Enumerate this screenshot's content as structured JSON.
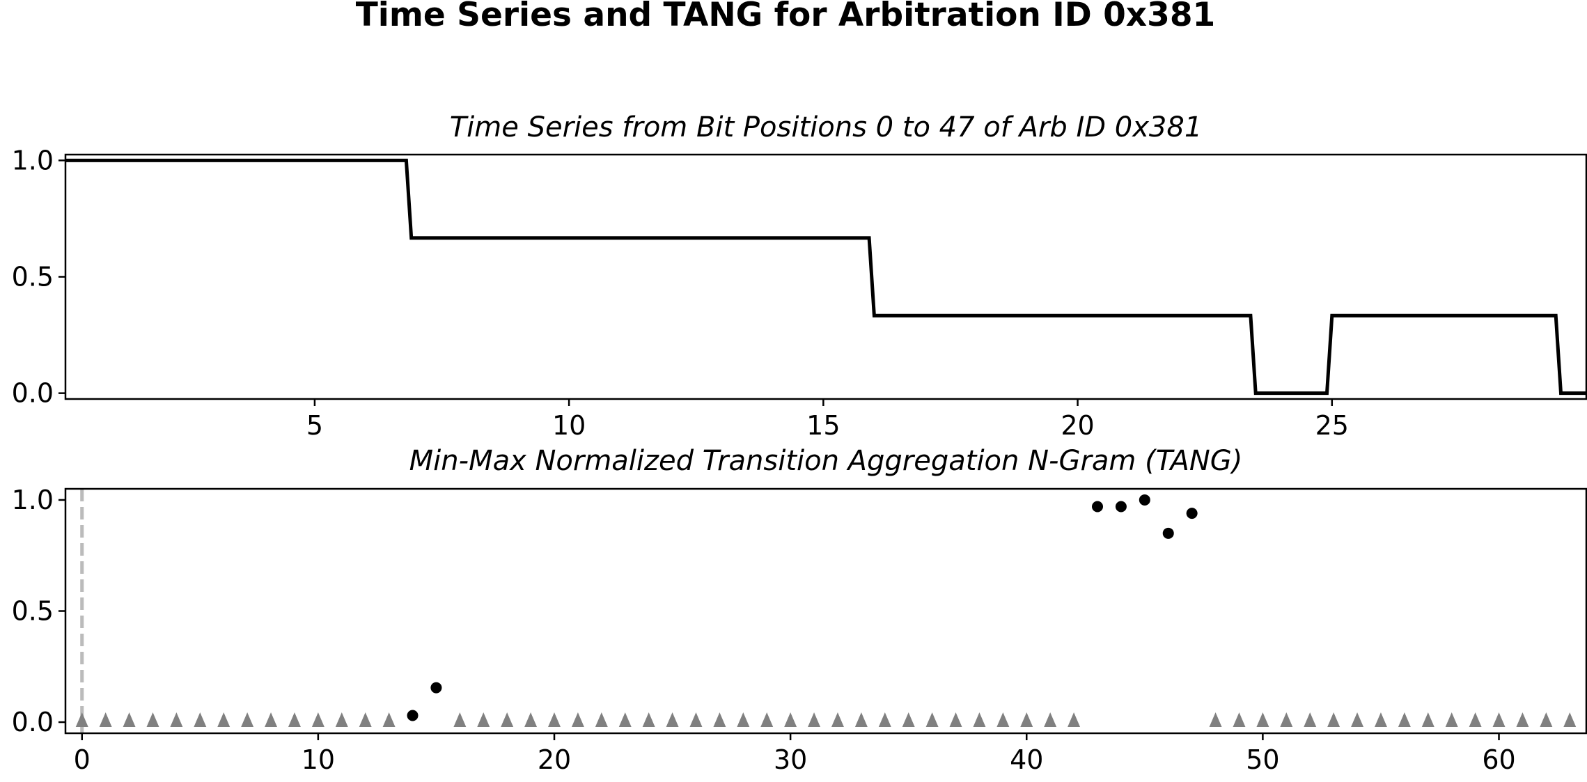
{
  "suptitle": "Time Series and TANG for Arbitration ID 0x381",
  "chart_data": [
    {
      "type": "line",
      "title": "Time Series from Bit Positions 0 to 47 of Arb ID 0x381",
      "xlabel": "",
      "ylabel": "",
      "xlim": [
        0.1,
        30
      ],
      "ylim": [
        -0.025,
        1.025
      ],
      "xticks": [
        5,
        10,
        15,
        20,
        25
      ],
      "yticks": [
        0.0,
        0.5,
        1.0
      ],
      "grid": false,
      "line_color": "#000000",
      "series": [
        {
          "x": [
            0.1,
            6.8,
            6.9,
            15.9,
            16.0,
            23.4,
            23.5,
            24.9,
            25.0,
            29.4,
            29.5,
            30
          ],
          "values": [
            1.0,
            1.0,
            0.667,
            0.667,
            0.333,
            0.333,
            0.0,
            0.0,
            0.333,
            0.333,
            0.0,
            0.0
          ]
        }
      ]
    },
    {
      "type": "scatter",
      "title": "Min-Max Normalized Transition Aggregation N-Gram (TANG)",
      "xlabel": "",
      "ylabel": "",
      "xlim": [
        -0.7,
        63.7
      ],
      "ylim": [
        -0.05,
        1.05
      ],
      "xticks": [
        0,
        10,
        20,
        30,
        40,
        50,
        60
      ],
      "yticks": [
        0.0,
        0.5,
        1.0
      ],
      "grid": false,
      "vline": {
        "x": 0,
        "style": "dashed",
        "color": "#bbbbbb"
      },
      "series": [
        {
          "marker": "circle",
          "color": "#000000",
          "x": [
            14,
            15,
            43,
            44,
            45,
            46,
            47
          ],
          "values": [
            0.03,
            0.155,
            0.97,
            0.97,
            1.0,
            0.85,
            0.94
          ]
        },
        {
          "marker": "triangle",
          "color": "#808080",
          "x": [
            0,
            1,
            2,
            3,
            4,
            5,
            6,
            7,
            8,
            9,
            10,
            11,
            12,
            13,
            16,
            17,
            18,
            19,
            20,
            21,
            22,
            23,
            24,
            25,
            26,
            27,
            28,
            29,
            30,
            31,
            32,
            33,
            34,
            35,
            36,
            37,
            38,
            39,
            40,
            41,
            42,
            48,
            49,
            50,
            51,
            52,
            53,
            54,
            55,
            56,
            57,
            58,
            59,
            60,
            61,
            62,
            63
          ],
          "values": [
            0,
            0,
            0,
            0,
            0,
            0,
            0,
            0,
            0,
            0,
            0,
            0,
            0,
            0,
            0,
            0,
            0,
            0,
            0,
            0,
            0,
            0,
            0,
            0,
            0,
            0,
            0,
            0,
            0,
            0,
            0,
            0,
            0,
            0,
            0,
            0,
            0,
            0,
            0,
            0,
            0,
            0,
            0,
            0,
            0,
            0,
            0,
            0,
            0,
            0,
            0,
            0,
            0,
            0,
            0,
            0,
            0
          ]
        }
      ]
    }
  ]
}
